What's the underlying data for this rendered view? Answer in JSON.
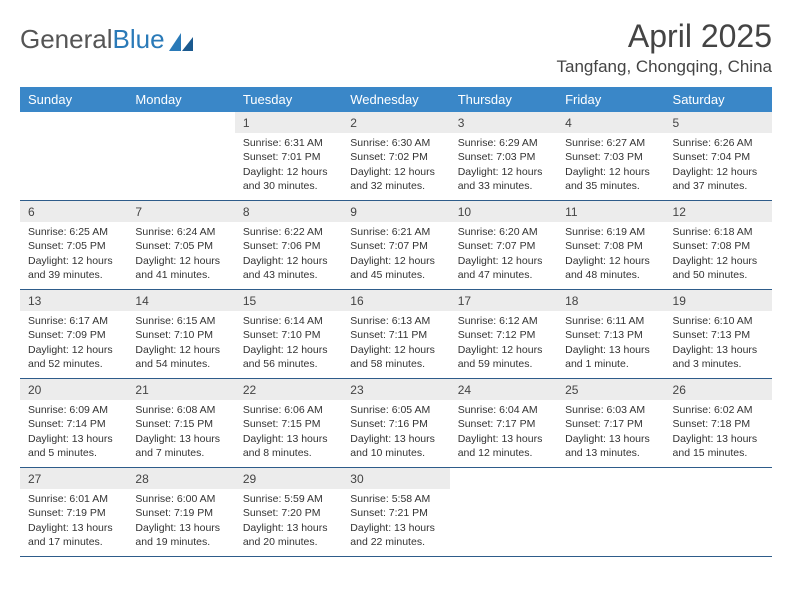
{
  "logo": {
    "text1": "General",
    "text2": "Blue"
  },
  "title": "April 2025",
  "location": "Tangfang, Chongqing, China",
  "daynames": [
    "Sunday",
    "Monday",
    "Tuesday",
    "Wednesday",
    "Thursday",
    "Friday",
    "Saturday"
  ],
  "colors": {
    "header_bg": "#3a87c8",
    "header_text": "#ffffff",
    "daynum_bg": "#ececec",
    "border": "#2e5c8a",
    "text": "#333333"
  },
  "weeks": [
    [
      null,
      null,
      {
        "n": "1",
        "sr": "Sunrise: 6:31 AM",
        "ss": "Sunset: 7:01 PM",
        "dl": "Daylight: 12 hours and 30 minutes."
      },
      {
        "n": "2",
        "sr": "Sunrise: 6:30 AM",
        "ss": "Sunset: 7:02 PM",
        "dl": "Daylight: 12 hours and 32 minutes."
      },
      {
        "n": "3",
        "sr": "Sunrise: 6:29 AM",
        "ss": "Sunset: 7:03 PM",
        "dl": "Daylight: 12 hours and 33 minutes."
      },
      {
        "n": "4",
        "sr": "Sunrise: 6:27 AM",
        "ss": "Sunset: 7:03 PM",
        "dl": "Daylight: 12 hours and 35 minutes."
      },
      {
        "n": "5",
        "sr": "Sunrise: 6:26 AM",
        "ss": "Sunset: 7:04 PM",
        "dl": "Daylight: 12 hours and 37 minutes."
      }
    ],
    [
      {
        "n": "6",
        "sr": "Sunrise: 6:25 AM",
        "ss": "Sunset: 7:05 PM",
        "dl": "Daylight: 12 hours and 39 minutes."
      },
      {
        "n": "7",
        "sr": "Sunrise: 6:24 AM",
        "ss": "Sunset: 7:05 PM",
        "dl": "Daylight: 12 hours and 41 minutes."
      },
      {
        "n": "8",
        "sr": "Sunrise: 6:22 AM",
        "ss": "Sunset: 7:06 PM",
        "dl": "Daylight: 12 hours and 43 minutes."
      },
      {
        "n": "9",
        "sr": "Sunrise: 6:21 AM",
        "ss": "Sunset: 7:07 PM",
        "dl": "Daylight: 12 hours and 45 minutes."
      },
      {
        "n": "10",
        "sr": "Sunrise: 6:20 AM",
        "ss": "Sunset: 7:07 PM",
        "dl": "Daylight: 12 hours and 47 minutes."
      },
      {
        "n": "11",
        "sr": "Sunrise: 6:19 AM",
        "ss": "Sunset: 7:08 PM",
        "dl": "Daylight: 12 hours and 48 minutes."
      },
      {
        "n": "12",
        "sr": "Sunrise: 6:18 AM",
        "ss": "Sunset: 7:08 PM",
        "dl": "Daylight: 12 hours and 50 minutes."
      }
    ],
    [
      {
        "n": "13",
        "sr": "Sunrise: 6:17 AM",
        "ss": "Sunset: 7:09 PM",
        "dl": "Daylight: 12 hours and 52 minutes."
      },
      {
        "n": "14",
        "sr": "Sunrise: 6:15 AM",
        "ss": "Sunset: 7:10 PM",
        "dl": "Daylight: 12 hours and 54 minutes."
      },
      {
        "n": "15",
        "sr": "Sunrise: 6:14 AM",
        "ss": "Sunset: 7:10 PM",
        "dl": "Daylight: 12 hours and 56 minutes."
      },
      {
        "n": "16",
        "sr": "Sunrise: 6:13 AM",
        "ss": "Sunset: 7:11 PM",
        "dl": "Daylight: 12 hours and 58 minutes."
      },
      {
        "n": "17",
        "sr": "Sunrise: 6:12 AM",
        "ss": "Sunset: 7:12 PM",
        "dl": "Daylight: 12 hours and 59 minutes."
      },
      {
        "n": "18",
        "sr": "Sunrise: 6:11 AM",
        "ss": "Sunset: 7:13 PM",
        "dl": "Daylight: 13 hours and 1 minute."
      },
      {
        "n": "19",
        "sr": "Sunrise: 6:10 AM",
        "ss": "Sunset: 7:13 PM",
        "dl": "Daylight: 13 hours and 3 minutes."
      }
    ],
    [
      {
        "n": "20",
        "sr": "Sunrise: 6:09 AM",
        "ss": "Sunset: 7:14 PM",
        "dl": "Daylight: 13 hours and 5 minutes."
      },
      {
        "n": "21",
        "sr": "Sunrise: 6:08 AM",
        "ss": "Sunset: 7:15 PM",
        "dl": "Daylight: 13 hours and 7 minutes."
      },
      {
        "n": "22",
        "sr": "Sunrise: 6:06 AM",
        "ss": "Sunset: 7:15 PM",
        "dl": "Daylight: 13 hours and 8 minutes."
      },
      {
        "n": "23",
        "sr": "Sunrise: 6:05 AM",
        "ss": "Sunset: 7:16 PM",
        "dl": "Daylight: 13 hours and 10 minutes."
      },
      {
        "n": "24",
        "sr": "Sunrise: 6:04 AM",
        "ss": "Sunset: 7:17 PM",
        "dl": "Daylight: 13 hours and 12 minutes."
      },
      {
        "n": "25",
        "sr": "Sunrise: 6:03 AM",
        "ss": "Sunset: 7:17 PM",
        "dl": "Daylight: 13 hours and 13 minutes."
      },
      {
        "n": "26",
        "sr": "Sunrise: 6:02 AM",
        "ss": "Sunset: 7:18 PM",
        "dl": "Daylight: 13 hours and 15 minutes."
      }
    ],
    [
      {
        "n": "27",
        "sr": "Sunrise: 6:01 AM",
        "ss": "Sunset: 7:19 PM",
        "dl": "Daylight: 13 hours and 17 minutes."
      },
      {
        "n": "28",
        "sr": "Sunrise: 6:00 AM",
        "ss": "Sunset: 7:19 PM",
        "dl": "Daylight: 13 hours and 19 minutes."
      },
      {
        "n": "29",
        "sr": "Sunrise: 5:59 AM",
        "ss": "Sunset: 7:20 PM",
        "dl": "Daylight: 13 hours and 20 minutes."
      },
      {
        "n": "30",
        "sr": "Sunrise: 5:58 AM",
        "ss": "Sunset: 7:21 PM",
        "dl": "Daylight: 13 hours and 22 minutes."
      },
      null,
      null,
      null
    ]
  ]
}
